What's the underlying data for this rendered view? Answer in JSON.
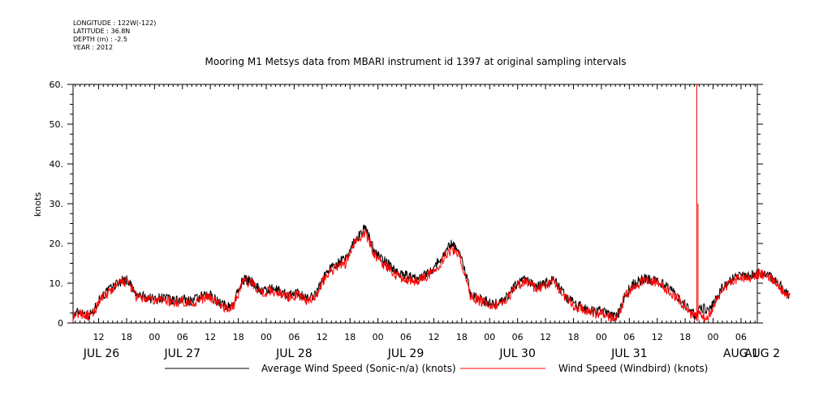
{
  "header": {
    "meta_lines": [
      "LONGITUDE : 122W(-122)",
      "LATITUDE : 36.8N",
      "DEPTH (m) : -2.5",
      "YEAR : 2012"
    ]
  },
  "chart_data": {
    "type": "line",
    "title": "Mooring M1 Metsys data from MBARI instrument id 1397 at original sampling intervals",
    "ylabel": "knots",
    "xlabel": "",
    "ylim": [
      0,
      60
    ],
    "yticks": [
      0,
      10,
      20,
      30,
      40,
      50,
      60
    ],
    "ytick_labels": [
      "0",
      "10.",
      "20.",
      "30.",
      "40.",
      "50.",
      "60."
    ],
    "x_hours_range": [
      6.5,
      153.5
    ],
    "hour_ticks": [
      {
        "h": 12,
        "label": "12"
      },
      {
        "h": 18,
        "label": "18"
      },
      {
        "h": 24,
        "label": "00"
      },
      {
        "h": 30,
        "label": "06"
      },
      {
        "h": 36,
        "label": "12"
      },
      {
        "h": 42,
        "label": "18"
      },
      {
        "h": 48,
        "label": "00"
      },
      {
        "h": 54,
        "label": "06"
      },
      {
        "h": 60,
        "label": "12"
      },
      {
        "h": 66,
        "label": "18"
      },
      {
        "h": 72,
        "label": "00"
      },
      {
        "h": 78,
        "label": "06"
      },
      {
        "h": 84,
        "label": "12"
      },
      {
        "h": 90,
        "label": "18"
      },
      {
        "h": 96,
        "label": "00"
      },
      {
        "h": 102,
        "label": "06"
      },
      {
        "h": 108,
        "label": "12"
      },
      {
        "h": 114,
        "label": "18"
      },
      {
        "h": 120,
        "label": "00"
      },
      {
        "h": 126,
        "label": "06"
      },
      {
        "h": 132,
        "label": "12"
      },
      {
        "h": 138,
        "label": "18"
      },
      {
        "h": 144,
        "label": "00"
      },
      {
        "h": 150,
        "label": "06"
      }
    ],
    "day_labels": [
      {
        "h": 6,
        "label": "JUL 26"
      },
      {
        "h": 30,
        "label": "JUL 27"
      },
      {
        "h": 54,
        "label": "JUL 28"
      },
      {
        "h": 78,
        "label": "JUL 29"
      },
      {
        "h": 102,
        "label": "JUL 30"
      },
      {
        "h": 126,
        "label": "JUL 31"
      },
      {
        "h": 150,
        "label": "AUG 1"
      },
      {
        "h": 174,
        "label": "AUG 2"
      }
    ],
    "series": [
      {
        "name": "Average Wind Speed (Sonic-n/a) (knots)",
        "color": "#000000",
        "points": [
          [
            6.5,
            2
          ],
          [
            8,
            3
          ],
          [
            10,
            2
          ],
          [
            11,
            3
          ],
          [
            12,
            6
          ],
          [
            14,
            8
          ],
          [
            16,
            10
          ],
          [
            17.5,
            11
          ],
          [
            18.5,
            10.5
          ],
          [
            20,
            7
          ],
          [
            22,
            6.5
          ],
          [
            24,
            6
          ],
          [
            26,
            6.5
          ],
          [
            28,
            5.5
          ],
          [
            30,
            6
          ],
          [
            32,
            5.5
          ],
          [
            34,
            6.5
          ],
          [
            36,
            7
          ],
          [
            38,
            5
          ],
          [
            40,
            4
          ],
          [
            41,
            5
          ],
          [
            42,
            8
          ],
          [
            43,
            11
          ],
          [
            45,
            10.5
          ],
          [
            47,
            8
          ],
          [
            49,
            8.5
          ],
          [
            51,
            8
          ],
          [
            53,
            7
          ],
          [
            55,
            7.5
          ],
          [
            57,
            6
          ],
          [
            59,
            8
          ],
          [
            61,
            13
          ],
          [
            63,
            15
          ],
          [
            65,
            16
          ],
          [
            67,
            21
          ],
          [
            68,
            22
          ],
          [
            69,
            24
          ],
          [
            70,
            22
          ],
          [
            71,
            19
          ],
          [
            72,
            17
          ],
          [
            74,
            15
          ],
          [
            76,
            13
          ],
          [
            78,
            12
          ],
          [
            80,
            11
          ],
          [
            82,
            12
          ],
          [
            84,
            14
          ],
          [
            86,
            17
          ],
          [
            87,
            19
          ],
          [
            88,
            20
          ],
          [
            89,
            19
          ],
          [
            90,
            16
          ],
          [
            91,
            12
          ],
          [
            92,
            7
          ],
          [
            94,
            6
          ],
          [
            96,
            5
          ],
          [
            98,
            5
          ],
          [
            100,
            7
          ],
          [
            102,
            10
          ],
          [
            104,
            11
          ],
          [
            106,
            9
          ],
          [
            108,
            10
          ],
          [
            110,
            11
          ],
          [
            112,
            7
          ],
          [
            114,
            5
          ],
          [
            116,
            4
          ],
          [
            118,
            3
          ],
          [
            120,
            3
          ],
          [
            122,
            2
          ],
          [
            123,
            1.5
          ],
          [
            124,
            3
          ],
          [
            125,
            7
          ],
          [
            127,
            10
          ],
          [
            129,
            11
          ],
          [
            131,
            11
          ],
          [
            133,
            10
          ],
          [
            135,
            8
          ],
          [
            137,
            6
          ],
          [
            139,
            3
          ],
          [
            140,
            2
          ],
          [
            141,
            3
          ],
          [
            142,
            4
          ],
          [
            143,
            3
          ],
          [
            144,
            5
          ],
          [
            145,
            7
          ],
          [
            146,
            9
          ],
          [
            148,
            11
          ],
          [
            150,
            12
          ],
          [
            152,
            12
          ],
          [
            154,
            13
          ],
          [
            156,
            12
          ],
          [
            158,
            10
          ],
          [
            159.5,
            8
          ],
          [
            160.5,
            7
          ]
        ]
      },
      {
        "name": "Wind Speed (Windbird) (knots)",
        "color": "#ff0000",
        "points": [
          [
            6.5,
            1.5
          ],
          [
            8,
            2.5
          ],
          [
            10,
            1.5
          ],
          [
            11,
            2.5
          ],
          [
            12,
            5.5
          ],
          [
            14,
            7.5
          ],
          [
            16,
            9.5
          ],
          [
            17.5,
            10.5
          ],
          [
            18.5,
            10
          ],
          [
            20,
            6.5
          ],
          [
            22,
            6
          ],
          [
            24,
            5.5
          ],
          [
            26,
            6
          ],
          [
            28,
            5
          ],
          [
            30,
            5.5
          ],
          [
            32,
            5
          ],
          [
            34,
            6
          ],
          [
            36,
            6.5
          ],
          [
            38,
            4.5
          ],
          [
            40,
            3.5
          ],
          [
            41,
            4.5
          ],
          [
            42,
            7.5
          ],
          [
            43,
            10.5
          ],
          [
            45,
            10
          ],
          [
            47,
            7.5
          ],
          [
            49,
            8
          ],
          [
            51,
            7.5
          ],
          [
            53,
            6.5
          ],
          [
            55,
            7
          ],
          [
            57,
            5.5
          ],
          [
            59,
            7.5
          ],
          [
            61,
            12.5
          ],
          [
            63,
            14
          ],
          [
            65,
            15
          ],
          [
            67,
            20
          ],
          [
            68,
            21
          ],
          [
            69,
            23
          ],
          [
            70,
            21
          ],
          [
            71,
            18
          ],
          [
            72,
            16
          ],
          [
            74,
            14
          ],
          [
            76,
            12
          ],
          [
            78,
            11
          ],
          [
            80,
            10.5
          ],
          [
            82,
            11.5
          ],
          [
            84,
            13
          ],
          [
            86,
            16
          ],
          [
            87,
            18
          ],
          [
            88,
            18.5
          ],
          [
            89,
            18
          ],
          [
            90,
            15
          ],
          [
            91,
            11
          ],
          [
            92,
            6.5
          ],
          [
            94,
            5.5
          ],
          [
            96,
            4.5
          ],
          [
            98,
            4.5
          ],
          [
            100,
            6.5
          ],
          [
            102,
            9.5
          ],
          [
            104,
            10.5
          ],
          [
            106,
            8.5
          ],
          [
            108,
            9.5
          ],
          [
            110,
            10.5
          ],
          [
            112,
            6.5
          ],
          [
            114,
            4.5
          ],
          [
            116,
            3.5
          ],
          [
            118,
            2.5
          ],
          [
            120,
            2.5
          ],
          [
            122,
            1.5
          ],
          [
            123,
            1
          ],
          [
            124,
            2.5
          ],
          [
            125,
            6.5
          ],
          [
            127,
            9.5
          ],
          [
            129,
            10.5
          ],
          [
            131,
            10.5
          ],
          [
            133,
            9.5
          ],
          [
            135,
            7.5
          ],
          [
            137,
            5.5
          ],
          [
            139,
            2.5
          ],
          [
            140,
            1.5
          ],
          [
            141,
            2.5
          ],
          [
            142,
            1.5
          ],
          [
            143,
            2
          ],
          [
            144,
            4
          ],
          [
            145,
            6.5
          ],
          [
            146,
            8.5
          ],
          [
            148,
            10.5
          ],
          [
            150,
            11.5
          ],
          [
            152,
            11.5
          ],
          [
            154,
            12.5
          ],
          [
            156,
            11.5
          ],
          [
            158,
            9.5
          ],
          [
            159.5,
            7.5
          ],
          [
            160.5,
            6.5
          ]
        ],
        "spike": {
          "x": 140.5,
          "y_from": 0.5,
          "y_to": 60
        }
      }
    ],
    "legend_placement": "bottom"
  }
}
